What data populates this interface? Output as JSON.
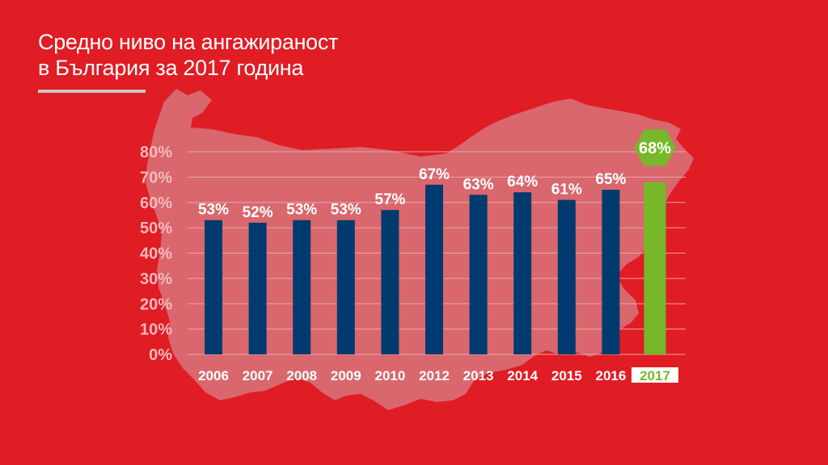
{
  "title_line1": "Средно ниво на ангажираност",
  "title_line2": "в България за 2017 година",
  "colors": {
    "background": "#e01c24",
    "map": "#d9676d",
    "bar": "#003b70",
    "highlight": "#76b82a",
    "tick_text": "#f6b9bc"
  },
  "chart_data": {
    "type": "bar",
    "title": "Средно ниво на ангажираност в България за 2017 година",
    "categories": [
      "2006",
      "2007",
      "2008",
      "2009",
      "2010",
      "2012",
      "2013",
      "2014",
      "2015",
      "2016",
      "2017"
    ],
    "values": [
      53,
      52,
      53,
      53,
      57,
      67,
      63,
      64,
      61,
      65,
      68
    ],
    "value_labels": [
      "53%",
      "52%",
      "53%",
      "53%",
      "57%",
      "67%",
      "63%",
      "64%",
      "61%",
      "65%",
      "68%"
    ],
    "highlight_category": "2017",
    "ylim": [
      0,
      80
    ],
    "yticks": [
      "0%",
      "10%",
      "20%",
      "30%",
      "40%",
      "50%",
      "60%",
      "70%",
      "80%"
    ],
    "xlabel": "",
    "ylabel": "",
    "grid": true
  }
}
